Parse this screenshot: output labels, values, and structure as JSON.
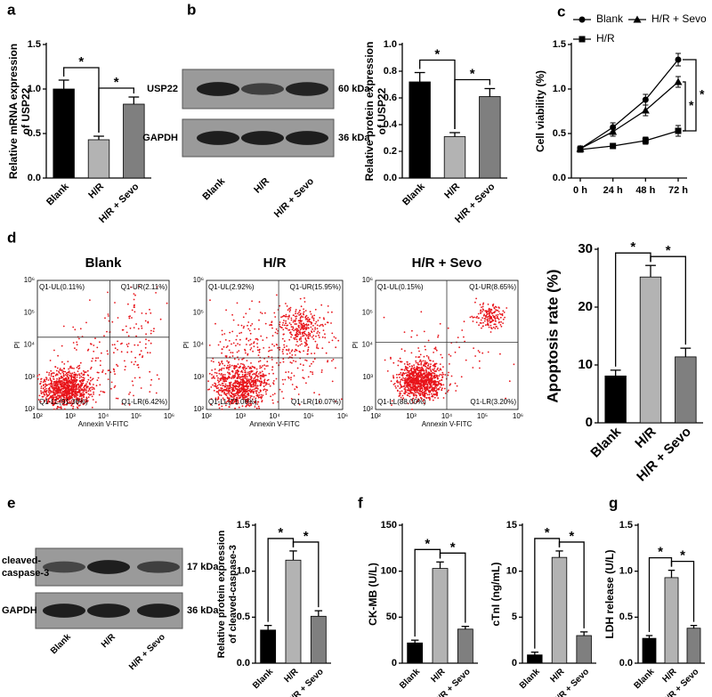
{
  "panel_labels": [
    "a",
    "b",
    "c",
    "d",
    "e",
    "f",
    "g"
  ],
  "chart_data": [
    {
      "type": "bar",
      "ylabel": [
        "Relative mRNA expression",
        "of USP22"
      ],
      "categories": [
        "Blank",
        "H/R",
        "H/R + Sevo"
      ],
      "values": [
        1.0,
        0.43,
        0.83
      ],
      "errors": [
        0.1,
        0.04,
        0.08
      ],
      "colors": [
        "#000000",
        "#b3b3b3",
        "#7f7f7f"
      ],
      "ylim": [
        0,
        1.5
      ],
      "yticks": [
        {
          "value": 0,
          "label": "0.0"
        },
        0.5,
        {
          "value": 1,
          "label": "1.0"
        },
        1.5
      ],
      "annotations": [
        "*",
        "*"
      ]
    },
    {
      "type": "bar",
      "ylabel": [
        "Relative protein expression",
        "of USP22"
      ],
      "categories": [
        "Blank",
        "H/R",
        "H/R + Sevo"
      ],
      "values": [
        0.72,
        0.31,
        0.61
      ],
      "errors": [
        0.07,
        0.03,
        0.06
      ],
      "colors": [
        "#000000",
        "#b3b3b3",
        "#7f7f7f"
      ],
      "ylim": [
        0,
        1.0
      ],
      "yticks": [
        {
          "value": 0,
          "label": "0.0"
        },
        0.2,
        0.4,
        0.6,
        0.8,
        {
          "value": 1,
          "label": "1.0"
        }
      ],
      "annotations": [
        "*",
        "*"
      ]
    },
    {
      "type": "line",
      "ylabel": "Cell viability (%)",
      "categories": [
        "0 h",
        "24 h",
        "48 h",
        "72 h"
      ],
      "series": [
        {
          "name": "Blank",
          "marker": "circle",
          "color": "#000000",
          "values": [
            0.33,
            0.57,
            0.88,
            1.33
          ],
          "errors": [
            0.03,
            0.05,
            0.06,
            0.07
          ]
        },
        {
          "name": "H/R",
          "marker": "square",
          "color": "#000000",
          "values": [
            0.32,
            0.36,
            0.42,
            0.53
          ],
          "errors": [
            0.03,
            0.03,
            0.04,
            0.06
          ]
        },
        {
          "name": "H/R + Sevo",
          "marker": "triangle",
          "color": "#000000",
          "values": [
            0.33,
            0.52,
            0.76,
            1.08
          ],
          "errors": [
            0.03,
            0.05,
            0.06,
            0.06
          ]
        }
      ],
      "ylim": [
        0,
        1.5
      ],
      "yticks": [
        {
          "value": 0,
          "label": "0.0"
        },
        0.5,
        {
          "value": 1,
          "label": "1.0"
        },
        1.5
      ],
      "annotations": [
        "*",
        "*"
      ]
    },
    {
      "type": "bar",
      "ylabel": "Apoptosis rate (%)",
      "categories": [
        "Blank",
        "H/R",
        "H/R + Sevo"
      ],
      "values": [
        8.1,
        25.2,
        11.4
      ],
      "errors": [
        1.0,
        2.0,
        1.5
      ],
      "colors": [
        "#000000",
        "#b3b3b3",
        "#7f7f7f"
      ],
      "ylim": [
        0,
        30
      ],
      "yticks": [
        0,
        10,
        20,
        30
      ],
      "annotations": [
        "*",
        "*"
      ]
    },
    {
      "type": "bar",
      "ylabel": [
        "Relative protein expression",
        "of cleaved-caspase-3"
      ],
      "categories": [
        "Blank",
        "H/R",
        "H/R + Sevo"
      ],
      "values": [
        0.36,
        1.12,
        0.51
      ],
      "errors": [
        0.05,
        0.1,
        0.06
      ],
      "colors": [
        "#000000",
        "#b3b3b3",
        "#7f7f7f"
      ],
      "ylim": [
        0,
        1.5
      ],
      "yticks": [
        {
          "value": 0,
          "label": "0.0"
        },
        0.5,
        {
          "value": 1,
          "label": "1.0"
        },
        1.5
      ],
      "annotations": [
        "*",
        "*"
      ]
    },
    {
      "type": "bar",
      "ylabel": "CK-MB (U/L)",
      "categories": [
        "Blank",
        "H/R",
        "H/R + Sevo"
      ],
      "values": [
        22,
        103,
        37
      ],
      "errors": [
        3,
        7,
        3
      ],
      "colors": [
        "#000000",
        "#b3b3b3",
        "#7f7f7f"
      ],
      "ylim": [
        0,
        150
      ],
      "yticks": [
        0,
        50,
        100,
        150
      ],
      "annotations": [
        "*",
        "*"
      ]
    },
    {
      "type": "bar",
      "ylabel": "cTnI (ng/mL)",
      "categories": [
        "Blank",
        "H/R",
        "H/R + Sevo"
      ],
      "values": [
        0.9,
        11.5,
        3.0
      ],
      "errors": [
        0.3,
        0.7,
        0.4
      ],
      "colors": [
        "#000000",
        "#b3b3b3",
        "#7f7f7f"
      ],
      "ylim": [
        0,
        15
      ],
      "yticks": [
        0,
        5,
        10,
        15
      ],
      "annotations": [
        "*",
        "*"
      ]
    },
    {
      "type": "bar",
      "ylabel": "LDH release (U/L)",
      "categories": [
        "Blank",
        "H/R",
        "H/R + Sevo"
      ],
      "values": [
        0.27,
        0.93,
        0.38
      ],
      "errors": [
        0.03,
        0.08,
        0.03
      ],
      "colors": [
        "#000000",
        "#b3b3b3",
        "#7f7f7f"
      ],
      "ylim": [
        0,
        1.5
      ],
      "yticks": [
        {
          "value": 0,
          "label": "0.0"
        },
        0.5,
        {
          "value": 1,
          "label": "1.0"
        },
        1.5
      ],
      "annotations": [
        "*",
        "*"
      ]
    }
  ],
  "blots": [
    {
      "rows": [
        {
          "label": [
            "USP22"
          ],
          "size": "60 kDa"
        },
        {
          "label": [
            "GAPDH"
          ],
          "size": "36 kDa"
        }
      ],
      "lanes": [
        "Blank",
        "H/R",
        "H/R + Sevo"
      ]
    },
    {
      "rows": [
        {
          "label": [
            "cleaved-",
            "caspase-3"
          ],
          "size": "17 kDa"
        },
        {
          "label": [
            "GAPDH"
          ],
          "size": "36 kDa"
        }
      ],
      "lanes": [
        "Blank",
        "H/R",
        "H/R + Sevo"
      ]
    }
  ],
  "flow": {
    "xlabel": "Annexin V-FITC",
    "ylabel": "PI",
    "tick_labels": [
      "10²",
      "10³",
      "10⁴",
      "10⁵",
      "10⁶"
    ],
    "plots": [
      {
        "title": "Blank",
        "quadrants": [
          "Q1-UL(0.11%)",
          "Q1-UR(2.11%)",
          "Q1-LL(91.36%)",
          "Q1-LR(6.42%)"
        ]
      },
      {
        "title": "H/R",
        "quadrants": [
          "Q1-UL(2.92%)",
          "Q1-UR(15.95%)",
          "Q1-LL(71.06%)",
          "Q1-LR(10.07%)"
        ]
      },
      {
        "title": "H/R + Sevo",
        "quadrants": [
          "Q1-UL(0.15%)",
          "Q1-UR(8.65%)",
          "Q1-LL(88.00%)",
          "Q1-LR(3.20%)"
        ]
      }
    ]
  }
}
